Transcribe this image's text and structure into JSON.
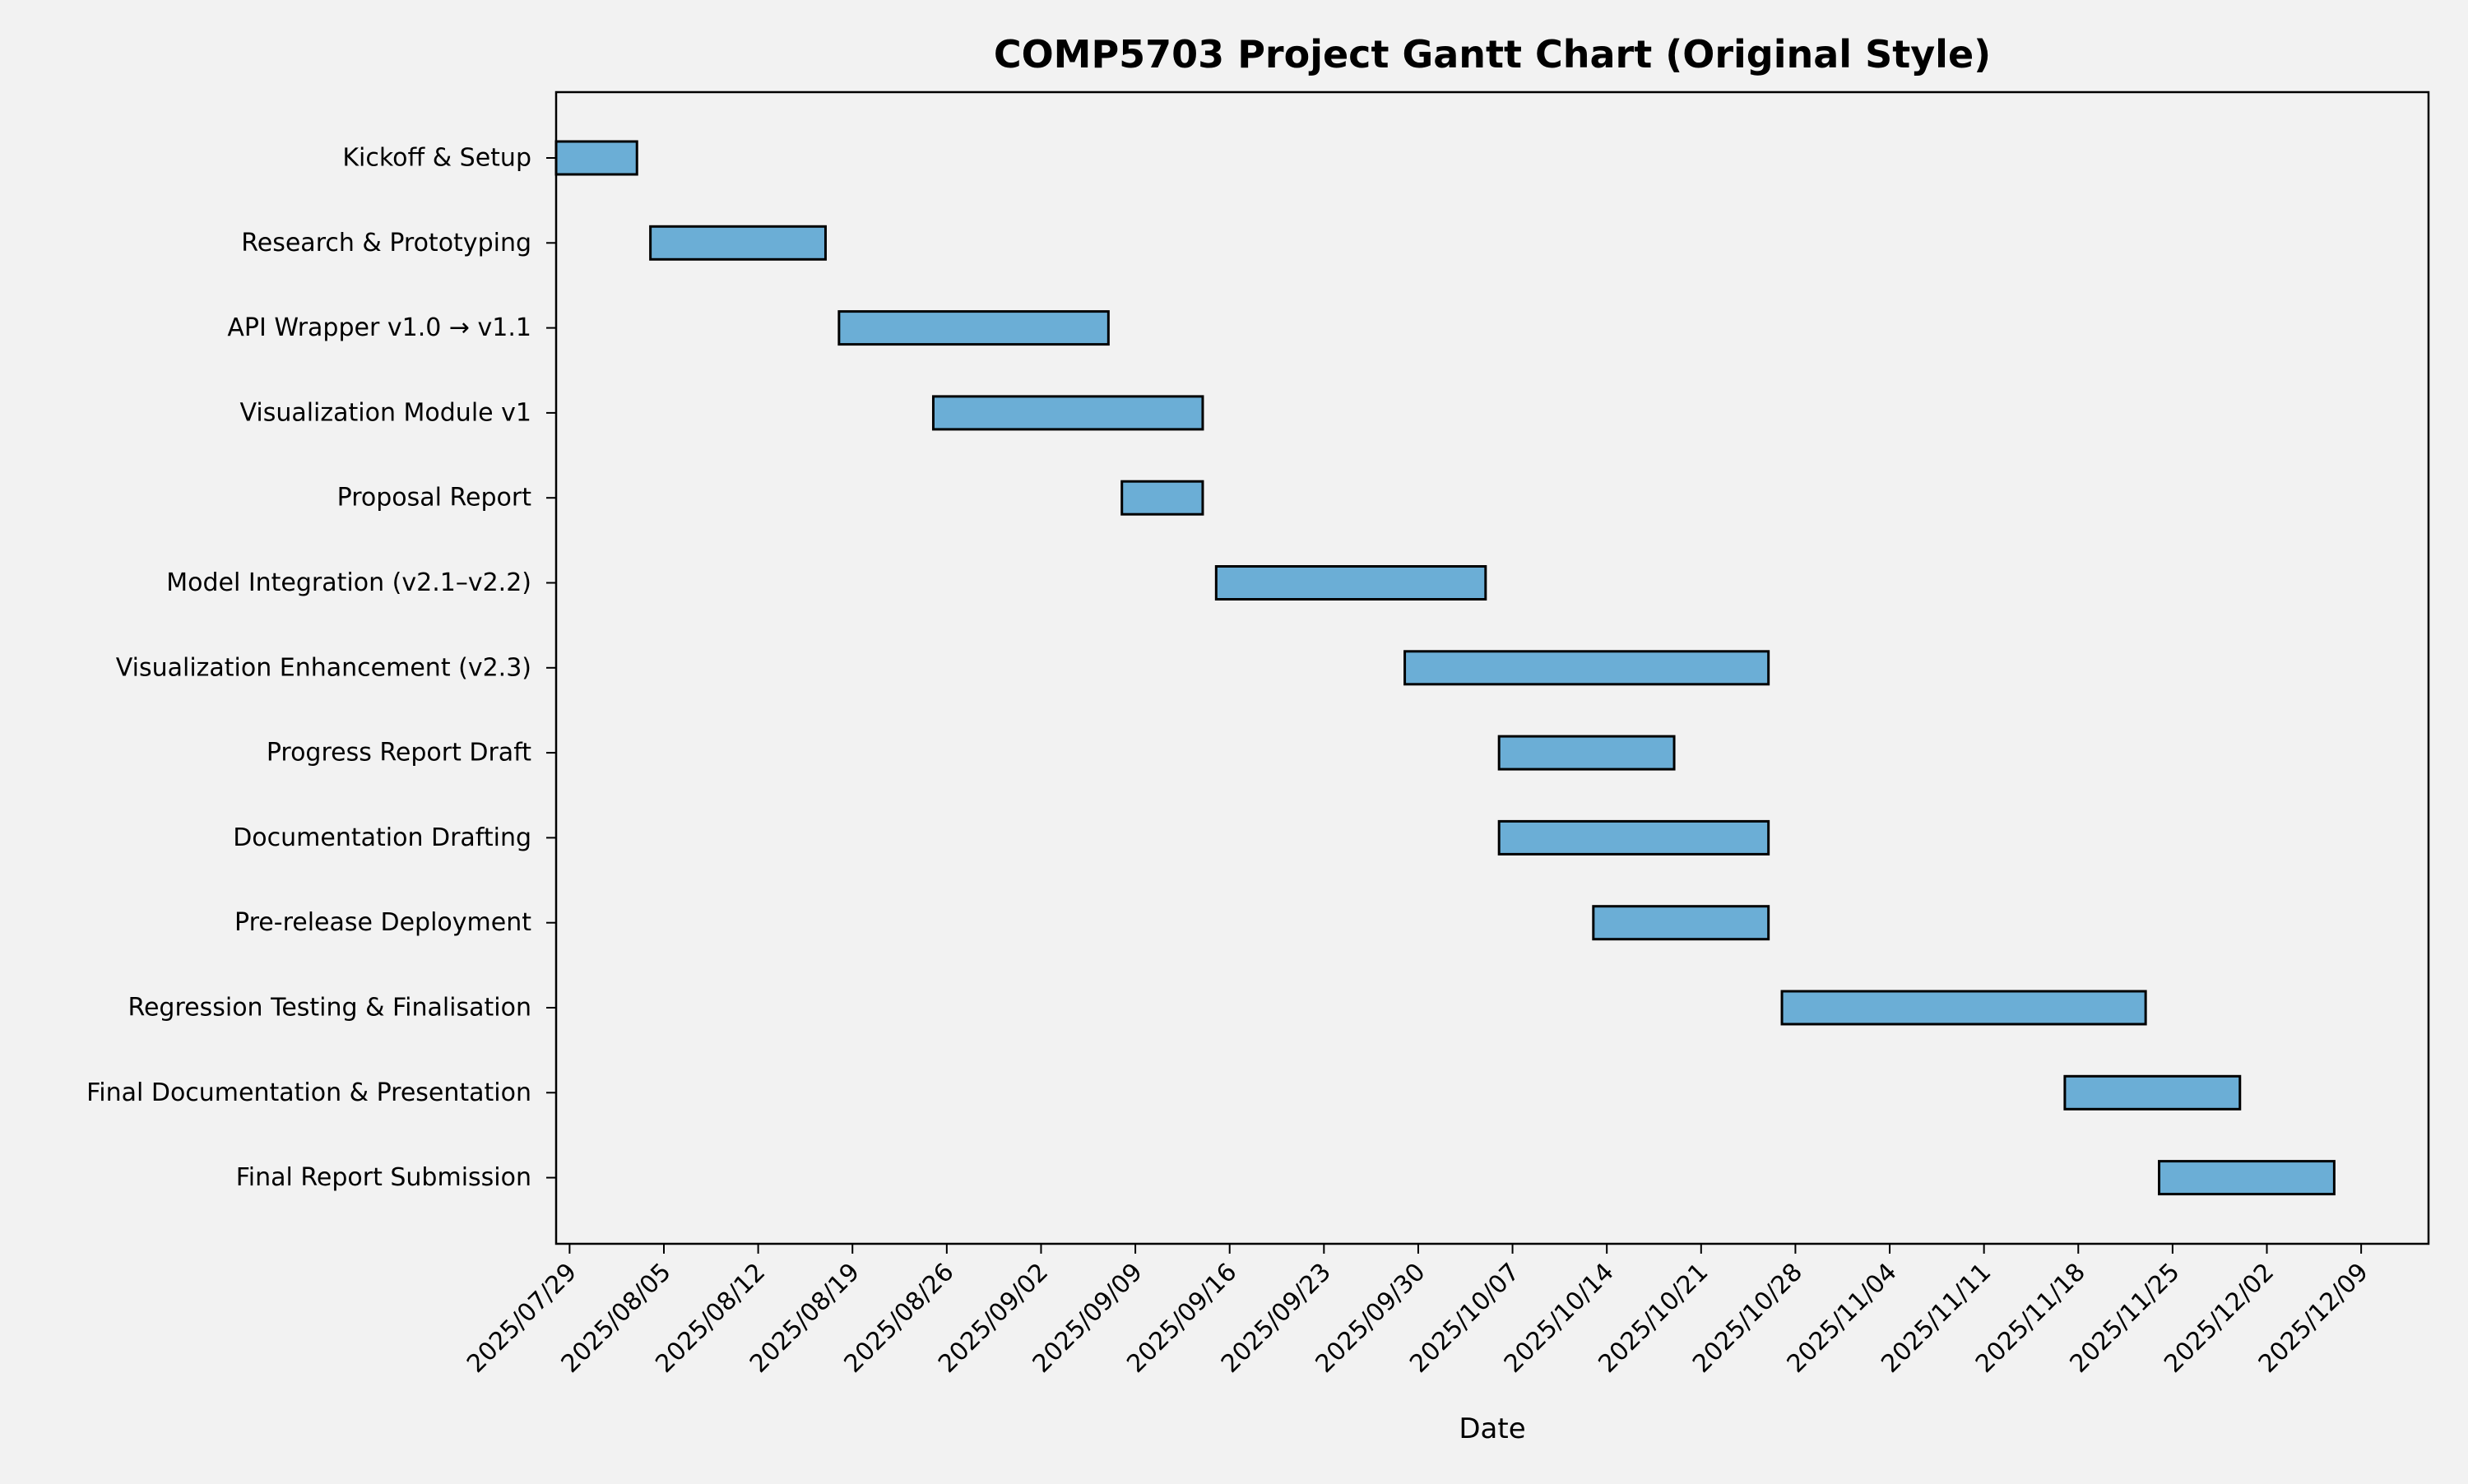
{
  "chart_data": {
    "type": "bar",
    "orientation": "horizontal",
    "title": "COMP5703 Project Gantt Chart (Original Style)",
    "xlabel": "Date",
    "ylabel": "",
    "grid": false,
    "bar_color": "#6baed6",
    "edge_color": "#000000",
    "background_color": "#f2f2f2",
    "xlim": [
      "2025-07-28",
      "2025-12-14"
    ],
    "x_ticks": [
      "2025/07/29",
      "2025/08/05",
      "2025/08/12",
      "2025/08/19",
      "2025/08/26",
      "2025/09/02",
      "2025/09/09",
      "2025/09/16",
      "2025/09/23",
      "2025/09/30",
      "2025/10/07",
      "2025/10/14",
      "2025/10/21",
      "2025/10/28",
      "2025/11/04",
      "2025/11/11",
      "2025/11/18",
      "2025/11/25",
      "2025/12/02",
      "2025/12/09"
    ],
    "tasks": [
      {
        "name": "Kickoff & Setup",
        "start": "2025-07-28",
        "end": "2025-08-03"
      },
      {
        "name": "Research & Prototyping",
        "start": "2025-08-04",
        "end": "2025-08-17"
      },
      {
        "name": "API Wrapper v1.0 → v1.1",
        "start": "2025-08-18",
        "end": "2025-09-07"
      },
      {
        "name": "Visualization Module v1",
        "start": "2025-08-25",
        "end": "2025-09-14"
      },
      {
        "name": "Proposal Report",
        "start": "2025-09-08",
        "end": "2025-09-14"
      },
      {
        "name": "Model Integration (v2.1–v2.2)",
        "start": "2025-09-15",
        "end": "2025-10-05"
      },
      {
        "name": "Visualization Enhancement (v2.3)",
        "start": "2025-09-29",
        "end": "2025-10-26"
      },
      {
        "name": "Progress Report Draft",
        "start": "2025-10-06",
        "end": "2025-10-19"
      },
      {
        "name": "Documentation Drafting",
        "start": "2025-10-06",
        "end": "2025-10-26"
      },
      {
        "name": "Pre-release Deployment",
        "start": "2025-10-13",
        "end": "2025-10-26"
      },
      {
        "name": "Regression Testing & Finalisation",
        "start": "2025-10-27",
        "end": "2025-11-23"
      },
      {
        "name": "Final Documentation & Presentation",
        "start": "2025-11-17",
        "end": "2025-11-30"
      },
      {
        "name": "Final Report Submission",
        "start": "2025-11-24",
        "end": "2025-12-07"
      }
    ]
  }
}
